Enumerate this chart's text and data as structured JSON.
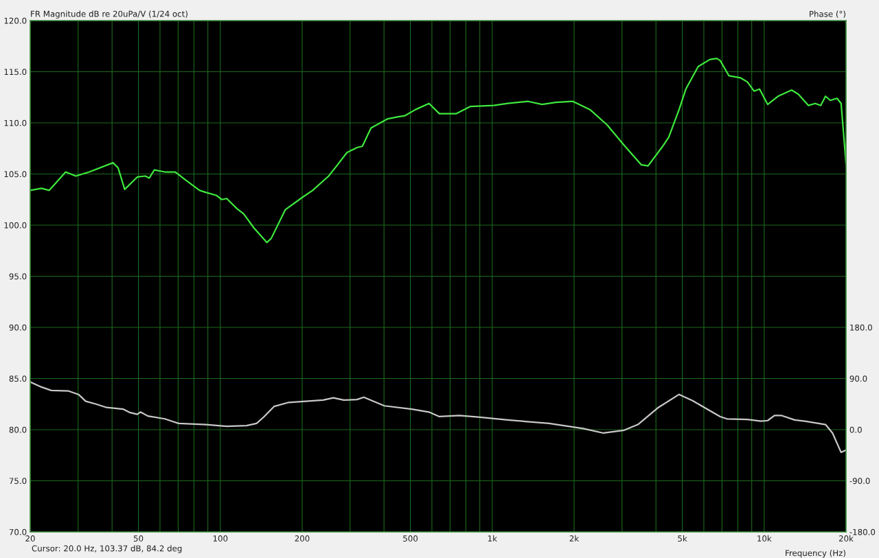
{
  "chart_data": {
    "type": "line",
    "title": "FR Magnitude dB re 20uPa/V (1/24 oct)",
    "xlabel": "Frequency (Hz)",
    "y2label": "Phase (°)",
    "annotations": [
      "Cursor: 20.0 Hz, 103.37 dB, 84.2 deg"
    ],
    "log": "x",
    "grid": true,
    "marker": "none",
    "line_style": "solid",
    "xlim": [
      20,
      20000
    ],
    "xticks": [
      {
        "value": 20,
        "label": "20"
      },
      {
        "value": 30,
        "label": null
      },
      {
        "value": 40,
        "label": null
      },
      {
        "value": 50,
        "label": "50"
      },
      {
        "value": 60,
        "label": null
      },
      {
        "value": 70,
        "label": null
      },
      {
        "value": 80,
        "label": null
      },
      {
        "value": 90,
        "label": null
      },
      {
        "value": 100,
        "label": "100"
      },
      {
        "value": 200,
        "label": "200"
      },
      {
        "value": 300,
        "label": null
      },
      {
        "value": 400,
        "label": null
      },
      {
        "value": 500,
        "label": "500"
      },
      {
        "value": 600,
        "label": null
      },
      {
        "value": 700,
        "label": null
      },
      {
        "value": 800,
        "label": null
      },
      {
        "value": 900,
        "label": null
      },
      {
        "value": 1000,
        "label": "1k"
      },
      {
        "value": 2000,
        "label": "2k"
      },
      {
        "value": 3000,
        "label": null
      },
      {
        "value": 4000,
        "label": null
      },
      {
        "value": 5000,
        "label": "5k"
      },
      {
        "value": 6000,
        "label": null
      },
      {
        "value": 7000,
        "label": null
      },
      {
        "value": 8000,
        "label": null
      },
      {
        "value": 9000,
        "label": null
      },
      {
        "value": 10000,
        "label": "10k"
      },
      {
        "value": 20000,
        "label": "20k"
      }
    ],
    "ylim": [
      70,
      120
    ],
    "yticks": [
      {
        "value": 70,
        "label": "70.0"
      },
      {
        "value": 75,
        "label": "75.0"
      },
      {
        "value": 80,
        "label": "80.0"
      },
      {
        "value": 85,
        "label": "85.0"
      },
      {
        "value": 90,
        "label": "90.0"
      },
      {
        "value": 95,
        "label": "95.0"
      },
      {
        "value": 100,
        "label": "100.0"
      },
      {
        "value": 105,
        "label": "105.0"
      },
      {
        "value": 110,
        "label": "110.0"
      },
      {
        "value": 115,
        "label": "115.0"
      },
      {
        "value": 120,
        "label": "120.0"
      }
    ],
    "y2lim": [
      -180,
      720
    ],
    "y2ticks": [
      {
        "value": -180,
        "label": "-180.0"
      },
      {
        "value": -90,
        "label": "-90.0"
      },
      {
        "value": 0,
        "label": "0.0"
      },
      {
        "value": 90,
        "label": "90.0"
      },
      {
        "value": 180,
        "label": "180.0"
      }
    ],
    "series": [
      {
        "color": "#3ee83e",
        "x": [
          20,
          22,
          23.5,
          24.6,
          27,
          29.4,
          33,
          40.3,
          42.1,
          44.5,
          49.5,
          53,
          54.8,
          57.2,
          62.5,
          68.3,
          74.6,
          83.9,
          88.6,
          96.9,
          101.3,
          105.6,
          115.2,
          121.9,
          133.2,
          148.3,
          153.9,
          173.3,
          200,
          218.6,
          250.3,
          268,
          292.2,
          319.5,
          332.8,
          358.3,
          413.1,
          451.1,
          477.9,
          522.3,
          585.6,
          639.2,
          738,
          829.7,
          1014,
          1141,
          1356,
          1524,
          1713,
          1980,
          2288,
          2645,
          3056,
          3531,
          3741,
          4206,
          4458,
          4865,
          5152,
          5718,
          6317,
          6693,
          6889,
          7424,
          8191,
          8674,
          9187,
          9617,
          10302,
          11240,
          12613,
          13355,
          14550,
          15410,
          16140,
          16810,
          17500,
          18530,
          19180,
          20000
        ],
        "values": [
          103.4,
          103.6,
          103.4,
          104.0,
          105.2,
          104.8,
          105.2,
          106.1,
          105.6,
          103.5,
          104.7,
          104.8,
          104.6,
          105.4,
          105.2,
          105.2,
          104.4,
          103.4,
          103.2,
          102.9,
          102.5,
          102.6,
          101.6,
          101.1,
          99.7,
          98.3,
          98.7,
          101.5,
          102.7,
          103.4,
          104.8,
          105.8,
          107.1,
          107.6,
          107.7,
          109.5,
          110.4,
          110.6,
          110.7,
          111.3,
          111.9,
          110.9,
          110.9,
          111.6,
          111.7,
          111.9,
          112.1,
          111.8,
          112.0,
          112.1,
          111.3,
          109.8,
          107.8,
          105.9,
          105.8,
          107.6,
          108.6,
          111.3,
          113.3,
          115.5,
          116.2,
          116.3,
          116.1,
          114.6,
          114.4,
          114.0,
          113.1,
          113.3,
          111.8,
          112.6,
          113.2,
          112.8,
          111.7,
          111.9,
          111.7,
          112.6,
          112.2,
          112.4,
          111.9,
          106.0
        ]
      },
      {
        "color": "#c8c8c8",
        "axis": "y2",
        "x": [
          20,
          22,
          23.9,
          27.7,
          30.1,
          32,
          34.9,
          38.2,
          44,
          46.6,
          49.5,
          50.9,
          54.1,
          62.5,
          70.2,
          88.6,
          105.6,
          124.9,
          136,
          144.3,
          157.9,
          178.6,
          238.9,
          260.5,
          284.2,
          318,
          337,
          401,
          506,
          585,
          639,
          757,
          902,
          1141,
          1617,
          2161,
          2564,
          3056,
          3433,
          4082,
          4865,
          5453,
          6889,
          7296,
          8674,
          9730,
          10302,
          10910,
          11550,
          12950,
          14110,
          15410,
          16810,
          17840,
          19180,
          20000
        ],
        "values": [
          84,
          75,
          69,
          68,
          62,
          50,
          45,
          39,
          36,
          30,
          27,
          31,
          24,
          19,
          11,
          9,
          6,
          7,
          11,
          22,
          41,
          48,
          52,
          56,
          52,
          53,
          57,
          42,
          36,
          31,
          23,
          25,
          22,
          17,
          11,
          2,
          -6,
          -1,
          9,
          39,
          62,
          51,
          23,
          19,
          18,
          15,
          16,
          25,
          25,
          17,
          15,
          12,
          9,
          -6,
          -40,
          -36
        ]
      }
    ]
  }
}
